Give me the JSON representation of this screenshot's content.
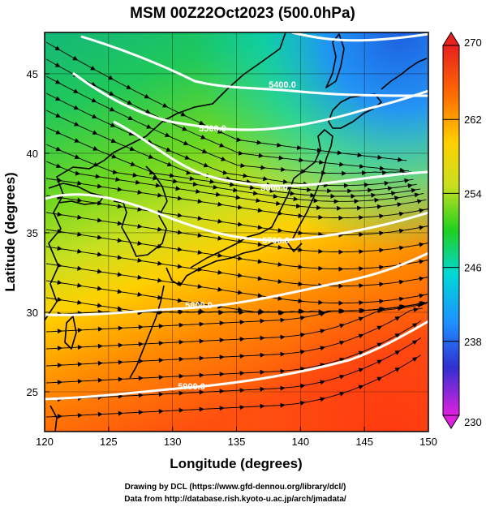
{
  "title": "MSM 00Z22Oct2023 (500.0hPa)",
  "x_axis": {
    "label": "Longitude (degrees)",
    "ticks": [
      "120",
      "125",
      "130",
      "135",
      "140",
      "145",
      "150"
    ]
  },
  "y_axis": {
    "label": "Latitude  (degrees)",
    "ticks": [
      "25",
      "30",
      "35",
      "40",
      "45"
    ]
  },
  "colorbar": {
    "ticks": [
      "270",
      "262",
      "254",
      "246",
      "238",
      "230"
    ],
    "range": [
      230,
      270
    ],
    "colors": [
      "#e020e0",
      "#3030d0",
      "#1e90ff",
      "#00d8d8",
      "#20d020",
      "#c8e020",
      "#ffd000",
      "#ff7000",
      "#e02020"
    ]
  },
  "contour_labels": [
    {
      "text": "5400.0"
    },
    {
      "text": "5500.0"
    },
    {
      "text": "5600.0"
    },
    {
      "text": "5700.0"
    },
    {
      "text": "5800.0"
    },
    {
      "text": "5900.0"
    }
  ],
  "credits": [
    "Drawing by DCL (https://www.gfd-dennou.org/library/dcl/)",
    "Data from http://database.rish.kyoto-u.ac.jp/arch/jmadata/"
  ]
}
